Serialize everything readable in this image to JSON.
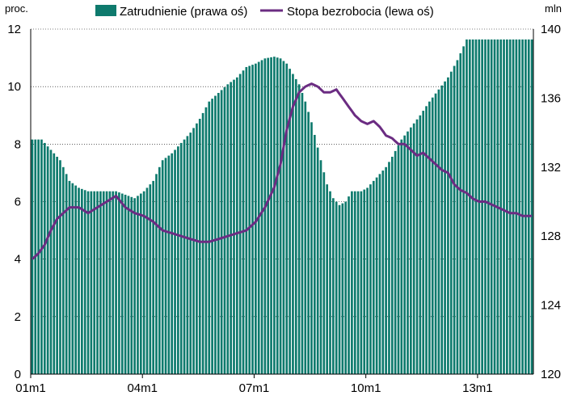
{
  "chart_data": {
    "type": "bar+line",
    "left_axis_unit": "proc.",
    "right_axis_unit": "mln",
    "left_ylim": [
      0,
      12
    ],
    "right_ylim": [
      120,
      140
    ],
    "left_ticks": [
      "0",
      "2",
      "4",
      "6",
      "8",
      "10",
      "12"
    ],
    "right_ticks": [
      "120",
      "124",
      "128",
      "132",
      "136",
      "140"
    ],
    "x_tick_labels": [
      "01m1",
      "04m1",
      "07m1",
      "10m1",
      "13m1"
    ],
    "x_start": "2001-01",
    "x_end": "2014-06",
    "grid": "horizontal dotted",
    "legend_position": "top",
    "series": [
      {
        "name": "Zatrudnienie (prawa oś)",
        "axis": "right",
        "kind": "bar",
        "color": "#0e7a6d",
        "values": [
          [
            0,
            133.6
          ],
          [
            3,
            133.6
          ],
          [
            6,
            133.0
          ],
          [
            9,
            132.4
          ],
          [
            12,
            131.2
          ],
          [
            15,
            130.8
          ],
          [
            18,
            130.6
          ],
          [
            24,
            130.6
          ],
          [
            27,
            130.6
          ],
          [
            30,
            130.4
          ],
          [
            33,
            130.2
          ],
          [
            36,
            130.6
          ],
          [
            39,
            131.2
          ],
          [
            42,
            132.4
          ],
          [
            45,
            132.8
          ],
          [
            48,
            133.4
          ],
          [
            51,
            134.0
          ],
          [
            54,
            134.8
          ],
          [
            57,
            135.8
          ],
          [
            60,
            136.3
          ],
          [
            63,
            136.8
          ],
          [
            66,
            137.2
          ],
          [
            69,
            137.8
          ],
          [
            72,
            138.0
          ],
          [
            75,
            138.3
          ],
          [
            78,
            138.4
          ],
          [
            80,
            138.3
          ],
          [
            82,
            138.0
          ],
          [
            84,
            137.4
          ],
          [
            86,
            136.8
          ],
          [
            88,
            135.8
          ],
          [
            90,
            134.6
          ],
          [
            93,
            132.4
          ],
          [
            95,
            131.0
          ],
          [
            97,
            130.2
          ],
          [
            99,
            129.8
          ],
          [
            101,
            130.0
          ],
          [
            103,
            130.6
          ],
          [
            106,
            130.6
          ],
          [
            108,
            130.8
          ],
          [
            110,
            131.2
          ],
          [
            112,
            131.6
          ],
          [
            114,
            132.0
          ],
          [
            116,
            132.6
          ],
          [
            119,
            133.6
          ],
          [
            122,
            134.3
          ],
          [
            125,
            135.0
          ],
          [
            128,
            135.8
          ],
          [
            131,
            136.5
          ],
          [
            134,
            137.2
          ],
          [
            137,
            138.2
          ],
          [
            140,
            139.4
          ],
          [
            161,
            139.4
          ]
        ]
      },
      {
        "name": "Stopa bezrobocia (lewa oś)",
        "axis": "left",
        "kind": "line",
        "color": "#6b2c82",
        "values": [
          [
            0,
            4.0
          ],
          [
            2,
            4.2
          ],
          [
            4,
            4.5
          ],
          [
            6,
            5.0
          ],
          [
            8,
            5.4
          ],
          [
            10,
            5.6
          ],
          [
            12,
            5.8
          ],
          [
            15,
            5.8
          ],
          [
            18,
            5.6
          ],
          [
            21,
            5.8
          ],
          [
            24,
            6.0
          ],
          [
            27,
            6.2
          ],
          [
            30,
            5.8
          ],
          [
            33,
            5.6
          ],
          [
            36,
            5.5
          ],
          [
            39,
            5.3
          ],
          [
            42,
            5.0
          ],
          [
            45,
            4.9
          ],
          [
            48,
            4.8
          ],
          [
            51,
            4.7
          ],
          [
            54,
            4.6
          ],
          [
            57,
            4.6
          ],
          [
            60,
            4.7
          ],
          [
            63,
            4.8
          ],
          [
            66,
            4.9
          ],
          [
            69,
            5.0
          ],
          [
            72,
            5.3
          ],
          [
            75,
            5.8
          ],
          [
            78,
            6.5
          ],
          [
            80,
            7.3
          ],
          [
            82,
            8.5
          ],
          [
            84,
            9.3
          ],
          [
            86,
            9.8
          ],
          [
            88,
            10.0
          ],
          [
            90,
            10.1
          ],
          [
            92,
            10.0
          ],
          [
            94,
            9.8
          ],
          [
            96,
            9.8
          ],
          [
            98,
            9.9
          ],
          [
            100,
            9.6
          ],
          [
            102,
            9.3
          ],
          [
            104,
            9.0
          ],
          [
            106,
            8.8
          ],
          [
            108,
            8.7
          ],
          [
            110,
            8.8
          ],
          [
            112,
            8.6
          ],
          [
            114,
            8.3
          ],
          [
            116,
            8.2
          ],
          [
            118,
            8.0
          ],
          [
            120,
            8.0
          ],
          [
            122,
            7.8
          ],
          [
            124,
            7.6
          ],
          [
            126,
            7.7
          ],
          [
            128,
            7.5
          ],
          [
            130,
            7.3
          ],
          [
            132,
            7.1
          ],
          [
            134,
            7.0
          ],
          [
            136,
            6.6
          ],
          [
            138,
            6.4
          ],
          [
            140,
            6.3
          ],
          [
            142,
            6.1
          ],
          [
            144,
            6.0
          ],
          [
            146,
            6.0
          ],
          [
            148,
            5.9
          ],
          [
            150,
            5.8
          ],
          [
            152,
            5.7
          ],
          [
            154,
            5.6
          ],
          [
            156,
            5.6
          ],
          [
            158,
            5.5
          ],
          [
            160,
            5.5
          ],
          [
            161,
            5.5
          ]
        ]
      }
    ]
  }
}
